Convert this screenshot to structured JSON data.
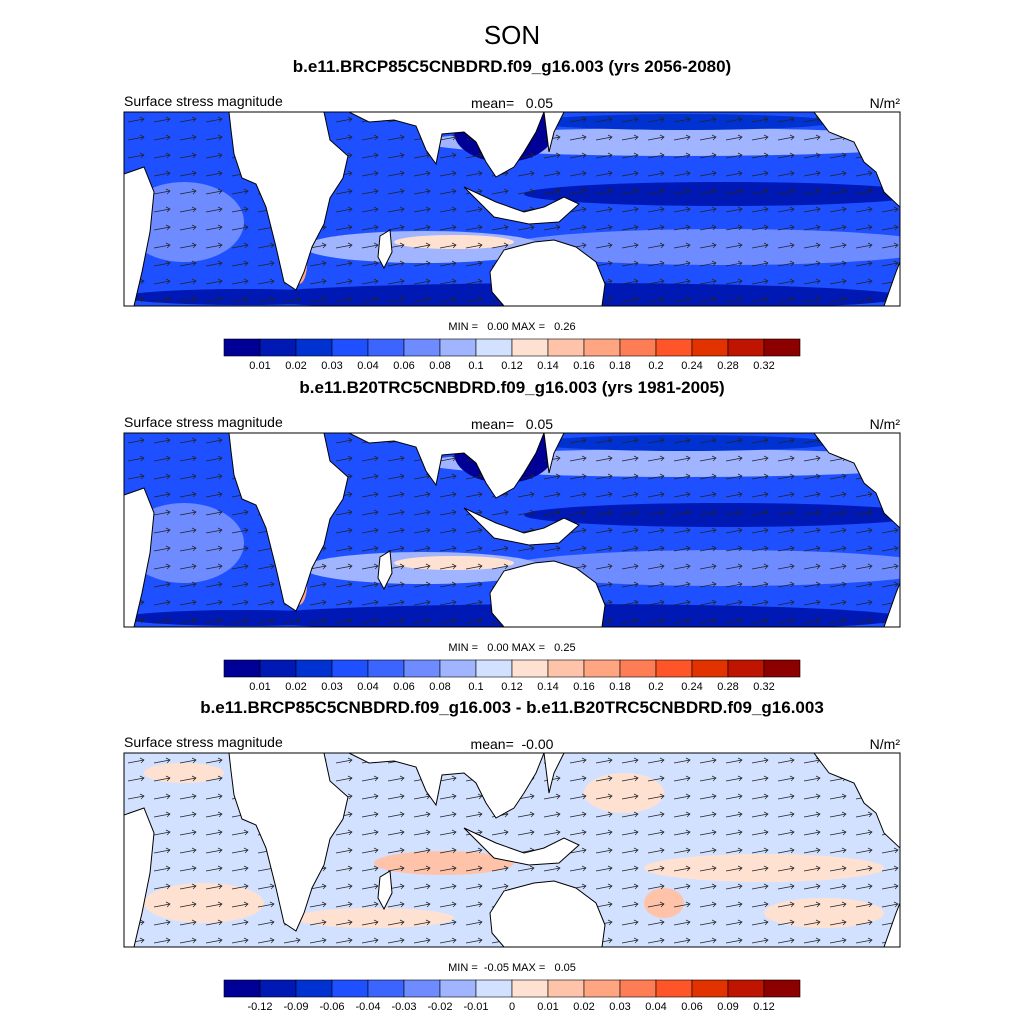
{
  "title": "SON",
  "colorbar_colors": [
    "#000096",
    "#0019b4",
    "#0032d2",
    "#1e50ff",
    "#3c64ff",
    "#6e8cff",
    "#a0b4ff",
    "#d2e1ff",
    "#ffe1d2",
    "#ffc3aa",
    "#ffa582",
    "#ff7d55",
    "#ff5528",
    "#e13200",
    "#be1400",
    "#8c0000"
  ],
  "panels": [
    {
      "title": "b.e11.BRCP85C5CNBDRD.f09_g16.003 (yrs 2056-2080)",
      "left_label": "Surface stress magnitude",
      "center_label": "mean=   0.05",
      "unit": "N/m²",
      "min_max": "MIN =   0.00 MAX =   0.26",
      "colorbar_labels": [
        "0.01",
        "0.02",
        "0.03",
        "0.04",
        "0.06",
        "0.08",
        "0.1",
        "0.12",
        "0.14",
        "0.16",
        "0.18",
        "0.2",
        "0.24",
        "0.28",
        "0.32"
      ]
    },
    {
      "title": "b.e11.B20TRC5CNBDRD.f09_g16.003 (yrs 1981-2005)",
      "left_label": "Surface stress magnitude",
      "center_label": "mean=   0.05",
      "unit": "N/m²",
      "min_max": "MIN =   0.00 MAX =   0.25",
      "colorbar_labels": [
        "0.01",
        "0.02",
        "0.03",
        "0.04",
        "0.06",
        "0.08",
        "0.1",
        "0.12",
        "0.14",
        "0.16",
        "0.18",
        "0.2",
        "0.24",
        "0.28",
        "0.32"
      ]
    },
    {
      "title": "b.e11.BRCP85C5CNBDRD.f09_g16.003 - b.e11.B20TRC5CNBDRD.f09_g16.003",
      "left_label": "Surface stress magnitude",
      "center_label": "mean=  -0.00",
      "unit": "N/m²",
      "min_max": "MIN =  -0.05 MAX =   0.05",
      "colorbar_labels": [
        "-0.12",
        "-0.09",
        "-0.06",
        "-0.04",
        "-0.03",
        "-0.02",
        "-0.01",
        "0",
        "0.01",
        "0.02",
        "0.03",
        "0.04",
        "0.06",
        "0.09",
        "0.12"
      ]
    }
  ]
}
